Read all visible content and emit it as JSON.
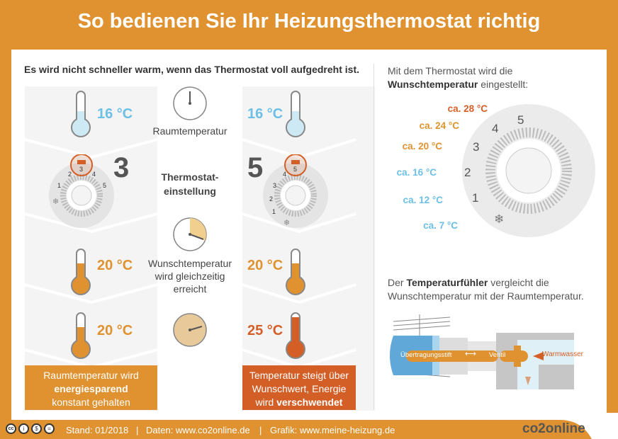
{
  "title": "So bedienen Sie Ihr Heizungsthermostat richtig",
  "left": {
    "heading": "Es wird nicht schneller warm, wenn das Thermostat voll aufgedreht ist.",
    "middle": {
      "raumtemperatur": "Raumtemperatur",
      "thermostat_1": "Thermostat-",
      "thermostat_2": "einstellung",
      "wunsch_1": "Wunschtemperatur",
      "wunsch_2": "wird gleichzeitig",
      "wunsch_3": "erreicht"
    },
    "col_a": {
      "t1": "16 °C",
      "setting": "3",
      "t2": "20 °C",
      "t3": "20 °C",
      "box_1": "Raumtemperatur wird",
      "box_2": "energiesparend",
      "box_3": "konstant gehalten"
    },
    "col_b": {
      "t1": "16 °C",
      "setting": "5",
      "t2": "20 °C",
      "t3": "25 °C",
      "box_1": "Temperatur steigt über",
      "box_2": "Wunschwert, Energie",
      "box_3a": "wird ",
      "box_3b": "verschwendet"
    },
    "dial_numbers": [
      "1",
      "2",
      "3",
      "4",
      "5"
    ]
  },
  "right": {
    "intro_1": "Mit dem Thermostat wird die",
    "intro_2b": "Wunschtemperatur",
    "intro_2": " eingestellt:",
    "levels": [
      {
        "temp": "ca. 28 °C",
        "setting": "5"
      },
      {
        "temp": "ca. 24 °C",
        "setting": "4"
      },
      {
        "temp": "ca. 20 °C",
        "setting": "3"
      },
      {
        "temp": "ca. 16 °C",
        "setting": "2"
      },
      {
        "temp": "ca. 12 °C",
        "setting": "1"
      },
      {
        "temp": "ca. 7 °C",
        "setting": "snowflake"
      }
    ],
    "sensor_1a": "Der ",
    "sensor_1b": "Temperaturfühler",
    "sensor_1c": " vergleicht die",
    "sensor_2": "Wunschtemperatur mit der Raumtemperatur.",
    "valve": {
      "pin": "Übertragungsstift",
      "valve": "Ventil",
      "water": "Warmwasser"
    }
  },
  "footer": {
    "license_icons": [
      "cc",
      "by",
      "nc",
      "nd"
    ],
    "stand": "Stand: 01/2018",
    "daten": "Daten: www.co2online.de",
    "grafik": "Grafik: www.meine-heizung.de",
    "sep": "|",
    "logo": "co2online"
  },
  "colors": {
    "orange": "#df922f",
    "dark_orange": "#d35f27",
    "blue": "#6cbfe6",
    "light_blue": "#cde9f4"
  }
}
